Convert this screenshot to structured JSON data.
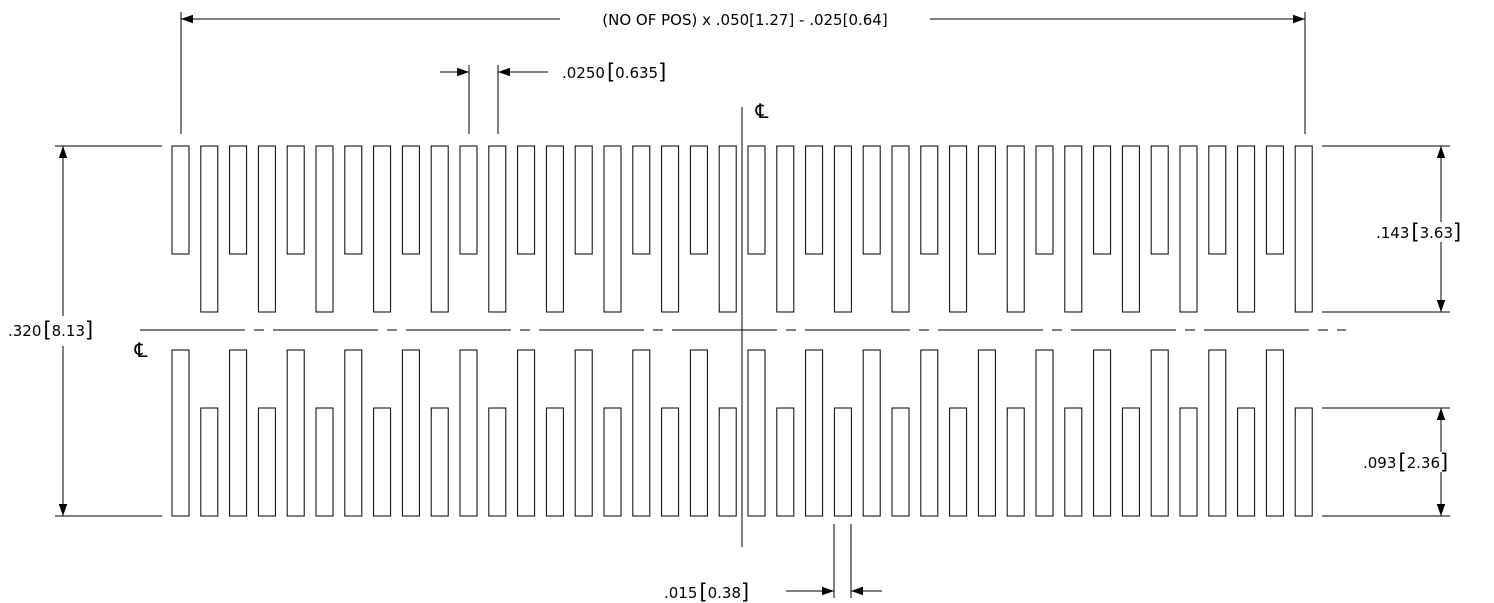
{
  "drawing": {
    "overall_length_label": "(NO OF POS) x .050[1.27] - .025[0.64]",
    "blade_width_label": ".0250",
    "blade_width_metric": "0.635",
    "overall_height_label": ".320",
    "overall_height_metric": "8.13",
    "upper_pad_label": ".143",
    "upper_pad_metric": "3.63",
    "lower_pad_label": ".093",
    "lower_pad_metric": "2.36",
    "slot_width_label": ".015",
    "slot_width_metric": "0.38",
    "centerline_symbol": "℄",
    "upper_row_pads": 40,
    "lower_row_pads": 40,
    "colors": {
      "line": "#000000",
      "background": "#ffffff"
    }
  }
}
